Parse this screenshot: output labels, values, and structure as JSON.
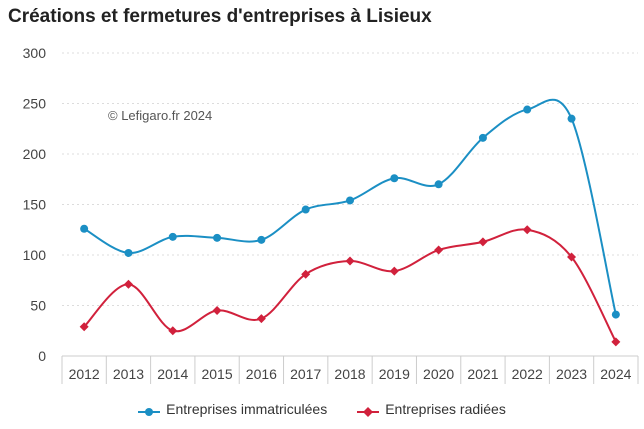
{
  "title": "Créations et fermetures d'entreprises à Lisieux",
  "watermark": "© Lefigaro.fr 2024",
  "chart_data": {
    "type": "line",
    "title": "Créations et fermetures d'entreprises à Lisieux",
    "xlabel": "",
    "ylabel": "",
    "categories": [
      "2012",
      "2013",
      "2014",
      "2015",
      "2016",
      "2017",
      "2018",
      "2019",
      "2020",
      "2021",
      "2022",
      "2023",
      "2024"
    ],
    "ylim": [
      0,
      300
    ],
    "yticks": [
      0,
      50,
      100,
      150,
      200,
      250,
      300
    ],
    "grid": true,
    "legend": "bottom",
    "series": [
      {
        "name": "Entreprises immatriculées",
        "color": "#1b8fc4",
        "marker": "circle",
        "values": [
          126,
          102,
          118,
          117,
          115,
          145,
          154,
          176,
          170,
          216,
          244,
          235,
          41
        ]
      },
      {
        "name": "Entreprises radiées",
        "color": "#d1213c",
        "marker": "diamond",
        "values": [
          29,
          71,
          25,
          45,
          37,
          81,
          94,
          84,
          105,
          113,
          125,
          98,
          14
        ]
      }
    ]
  }
}
